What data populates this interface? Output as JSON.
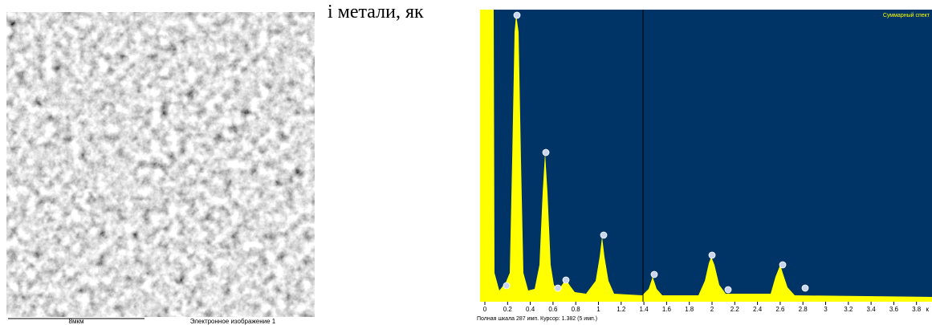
{
  "document": {
    "text_fragment": "і метали, як",
    "micrograph": {
      "scale_label": "8мкм",
      "caption": "Электронное изображение 1"
    },
    "spectrum": {
      "title": "Суммарный спект",
      "x_ticks": [
        0,
        0.2,
        0.4,
        0.6,
        0.8,
        1,
        1.2,
        1.4,
        1.6,
        1.8,
        2,
        2.2,
        2.4,
        2.6,
        2.8,
        3,
        3.2,
        3.4,
        3.6,
        3.8
      ],
      "unit": "к",
      "status": "Полная шкала 287 имп. Курсор: 1.382 (5 имп.)"
    }
  }
}
